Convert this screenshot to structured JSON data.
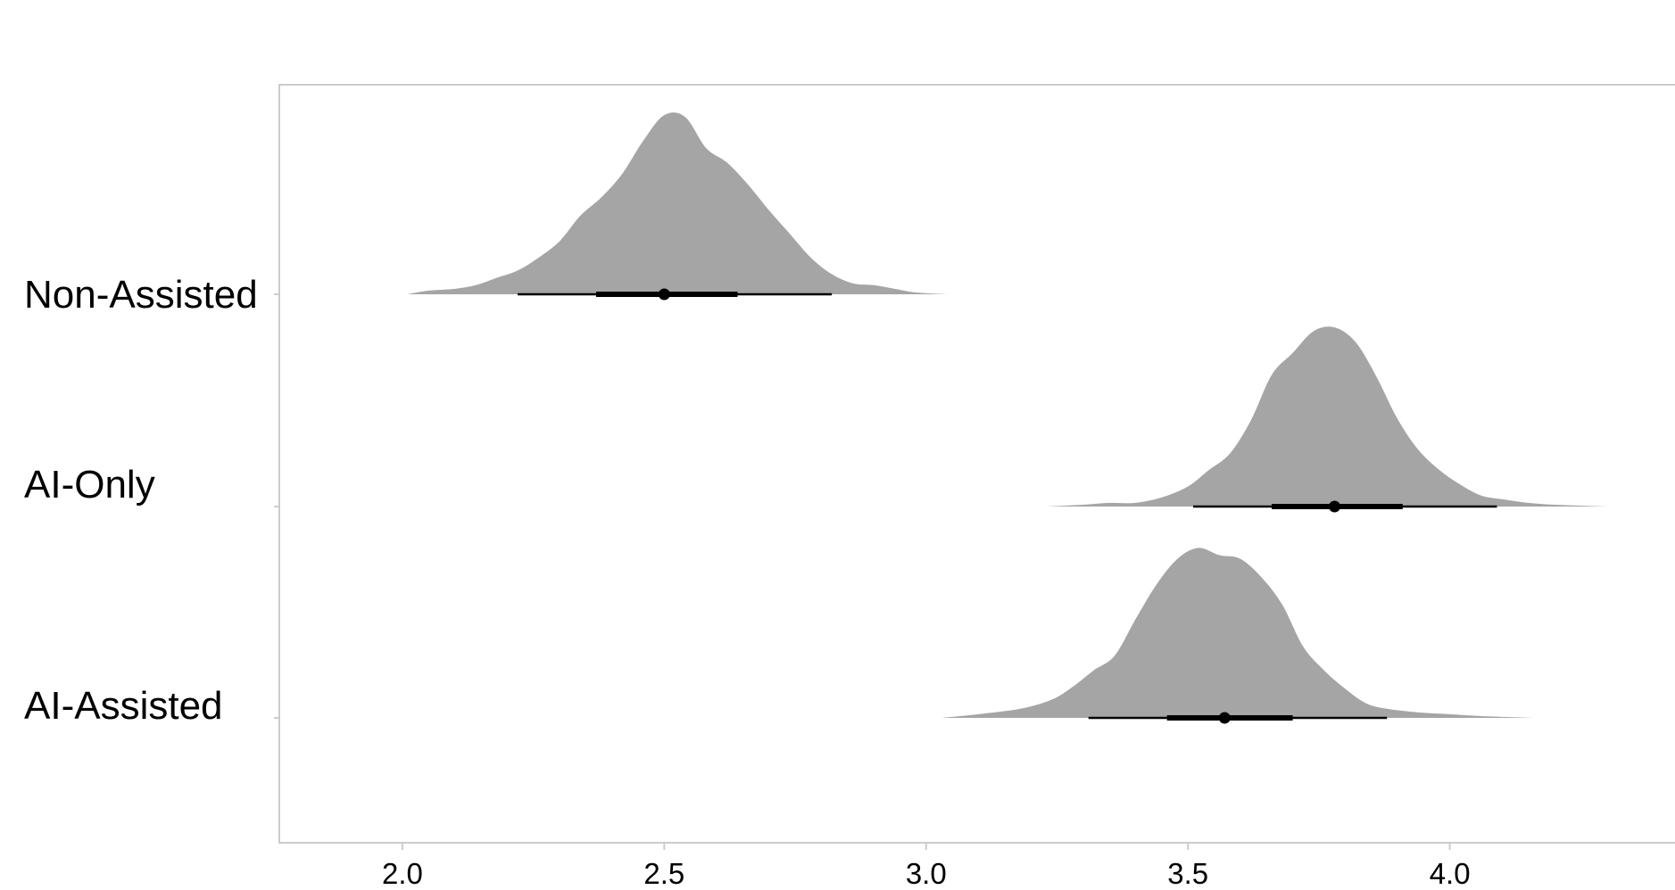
{
  "chart_data": {
    "type": "density",
    "title": "",
    "xlabel": "",
    "ylabel": "",
    "xlim": [
      1.765,
      4.43
    ],
    "x_ticks": [
      2.0,
      2.5,
      3.0,
      3.5,
      4.0
    ],
    "x_tick_labels": [
      "2.0",
      "2.5",
      "3.0",
      "3.5",
      "4.0"
    ],
    "colors": {
      "density_fill": "#a5a5a5",
      "interval": "#000000",
      "frame": "#cccccc"
    },
    "grid": false,
    "legend": "none",
    "categories": [
      "Non-Assisted",
      "AI-Only",
      "AI-Assisted"
    ],
    "series": [
      {
        "name": "Non-Assisted",
        "point_estimate": 2.5,
        "interval_inner": [
          2.37,
          2.64
        ],
        "interval_outer": [
          2.22,
          2.82
        ],
        "density": [
          [
            2.01,
            0.0
          ],
          [
            2.05,
            0.02
          ],
          [
            2.1,
            0.03
          ],
          [
            2.14,
            0.05
          ],
          [
            2.18,
            0.09
          ],
          [
            2.22,
            0.13
          ],
          [
            2.26,
            0.2
          ],
          [
            2.3,
            0.29
          ],
          [
            2.34,
            0.43
          ],
          [
            2.38,
            0.53
          ],
          [
            2.42,
            0.66
          ],
          [
            2.46,
            0.84
          ],
          [
            2.5,
            0.98
          ],
          [
            2.54,
            0.97
          ],
          [
            2.58,
            0.8
          ],
          [
            2.62,
            0.72
          ],
          [
            2.66,
            0.6
          ],
          [
            2.7,
            0.46
          ],
          [
            2.74,
            0.33
          ],
          [
            2.78,
            0.2
          ],
          [
            2.82,
            0.11
          ],
          [
            2.86,
            0.06
          ],
          [
            2.9,
            0.05
          ],
          [
            2.94,
            0.03
          ],
          [
            2.98,
            0.01
          ],
          [
            3.04,
            0.0
          ]
        ]
      },
      {
        "name": "AI-Only",
        "point_estimate": 3.78,
        "interval_inner": [
          3.66,
          3.91
        ],
        "interval_outer": [
          3.51,
          4.09
        ],
        "density": [
          [
            3.23,
            0.0
          ],
          [
            3.3,
            0.01
          ],
          [
            3.35,
            0.02
          ],
          [
            3.4,
            0.02
          ],
          [
            3.45,
            0.05
          ],
          [
            3.5,
            0.11
          ],
          [
            3.54,
            0.2
          ],
          [
            3.58,
            0.29
          ],
          [
            3.62,
            0.47
          ],
          [
            3.66,
            0.72
          ],
          [
            3.7,
            0.84
          ],
          [
            3.74,
            0.96
          ],
          [
            3.78,
            0.98
          ],
          [
            3.82,
            0.9
          ],
          [
            3.86,
            0.71
          ],
          [
            3.9,
            0.48
          ],
          [
            3.94,
            0.31
          ],
          [
            3.98,
            0.2
          ],
          [
            4.02,
            0.12
          ],
          [
            4.06,
            0.06
          ],
          [
            4.1,
            0.04
          ],
          [
            4.15,
            0.02
          ],
          [
            4.2,
            0.01
          ],
          [
            4.3,
            0.0
          ]
        ]
      },
      {
        "name": "AI-Assisted",
        "point_estimate": 3.57,
        "interval_inner": [
          3.46,
          3.7
        ],
        "interval_outer": [
          3.31,
          3.88
        ],
        "density": [
          [
            3.03,
            0.0
          ],
          [
            3.1,
            0.02
          ],
          [
            3.18,
            0.05
          ],
          [
            3.24,
            0.1
          ],
          [
            3.28,
            0.17
          ],
          [
            3.32,
            0.26
          ],
          [
            3.36,
            0.34
          ],
          [
            3.4,
            0.54
          ],
          [
            3.44,
            0.73
          ],
          [
            3.48,
            0.87
          ],
          [
            3.52,
            0.93
          ],
          [
            3.56,
            0.89
          ],
          [
            3.6,
            0.87
          ],
          [
            3.64,
            0.77
          ],
          [
            3.68,
            0.62
          ],
          [
            3.72,
            0.39
          ],
          [
            3.76,
            0.26
          ],
          [
            3.8,
            0.16
          ],
          [
            3.84,
            0.08
          ],
          [
            3.88,
            0.05
          ],
          [
            3.94,
            0.03
          ],
          [
            4.0,
            0.02
          ],
          [
            4.06,
            0.01
          ],
          [
            4.16,
            0.0
          ]
        ]
      }
    ]
  }
}
